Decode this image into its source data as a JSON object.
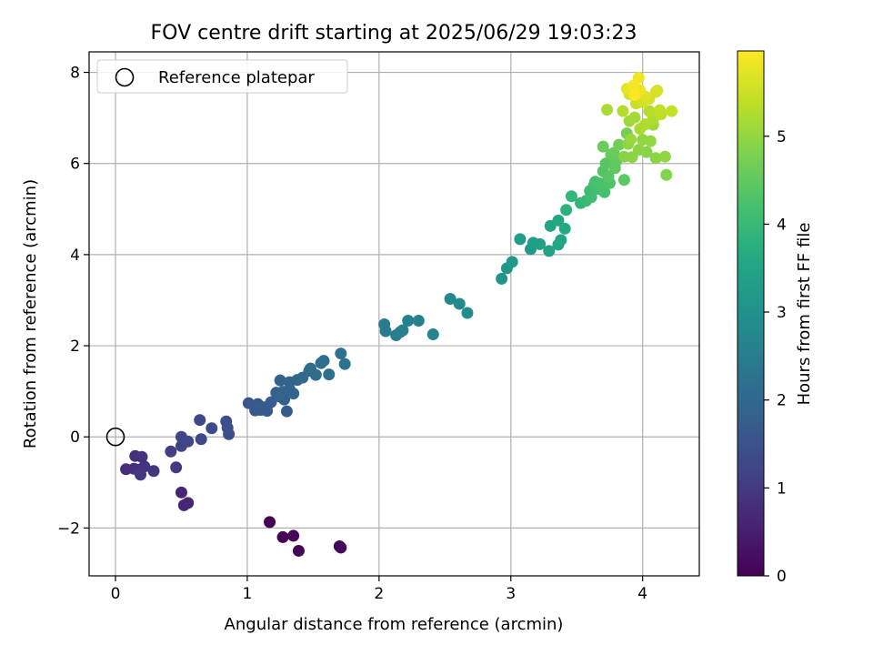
{
  "chart_data": {
    "type": "scatter",
    "title": "FOV centre drift starting at 2025/06/29 19:03:23",
    "xlabel": "Angular distance from reference (arcmin)",
    "ylabel": "Rotation from reference (arcmin)",
    "xlim": [
      -0.2,
      4.43
    ],
    "ylim": [
      -3.05,
      8.45
    ],
    "xticks": [
      0,
      1,
      2,
      3,
      4
    ],
    "yticks": [
      -2,
      0,
      2,
      4,
      6,
      8
    ],
    "grid": true,
    "legend": {
      "placement": "top-left",
      "entries": [
        "Reference platepar"
      ]
    },
    "reference_point": {
      "x": 0,
      "y": 0
    },
    "colorbar": {
      "label": "Hours from first FF file",
      "range": [
        0,
        5.97
      ],
      "ticks": [
        0,
        1,
        2,
        3,
        4,
        5
      ],
      "colormap": "viridis"
    },
    "series": [
      {
        "x": [
          1.17,
          1.27,
          1.35,
          1.39,
          1.7,
          1.71,
          0.08,
          0.14,
          0.18,
          0.15,
          0.2,
          0.22,
          0.29,
          0.19,
          0.5,
          0.52,
          0.55,
          0.46,
          0.42,
          0.5,
          0.5,
          0.55,
          0.64,
          0.65,
          0.73,
          0.84,
          0.86,
          0.85,
          1.01,
          1.08,
          1.12,
          1.15,
          1.06,
          1.1,
          1.18,
          1.22,
          1.25,
          1.28,
          1.3,
          1.32,
          1.27,
          1.35,
          1.38,
          1.42,
          1.47,
          1.48,
          1.52,
          1.56,
          1.58,
          1.62,
          1.71,
          1.74,
          1.25,
          1.32,
          2.04,
          2.05,
          2.13,
          2.16,
          2.18,
          2.22,
          2.3,
          2.41,
          2.54,
          2.61,
          2.67,
          2.93,
          2.97,
          3.01,
          3.07,
          3.15,
          3.17,
          3.22,
          3.3,
          3.29,
          3.36,
          3.38,
          3.36,
          3.41,
          3.42,
          3.46,
          3.53,
          3.57,
          3.6,
          3.61,
          3.63,
          3.64,
          3.66,
          3.68,
          3.7,
          3.72,
          3.74,
          3.76,
          3.7,
          3.78,
          3.8,
          3.82,
          3.86,
          3.88,
          3.75,
          3.71,
          3.79,
          3.86,
          3.89,
          3.9,
          3.92,
          3.94,
          3.96,
          3.98,
          4.0,
          4.02,
          3.9,
          3.95,
          4.05,
          4.08,
          4.1,
          4.11,
          4.13,
          4.17,
          4.18,
          3.73,
          3.85,
          3.92,
          3.97,
          4.0,
          4.05,
          4.1,
          4.14,
          4.22,
          3.88,
          3.93,
          3.98,
          4.02,
          4.08,
          3.94,
          3.91,
          3.97,
          4.03,
          4.06
        ],
        "y": [
          -1.87,
          -2.2,
          -2.17,
          -2.5,
          -2.4,
          -2.43,
          -0.71,
          -0.7,
          -0.72,
          -0.42,
          -0.44,
          -0.65,
          -0.75,
          -0.83,
          -1.22,
          -1.5,
          -1.45,
          -0.67,
          -0.32,
          -0.2,
          0.0,
          -0.1,
          0.37,
          -0.05,
          0.19,
          0.34,
          0.06,
          0.2,
          0.74,
          0.72,
          0.65,
          0.57,
          0.58,
          0.59,
          0.76,
          0.97,
          1.24,
          0.82,
          0.56,
          1.2,
          0.99,
          0.95,
          1.25,
          1.3,
          1.45,
          1.5,
          1.36,
          1.62,
          1.67,
          1.37,
          1.83,
          1.6,
          0.88,
          1.05,
          2.47,
          2.32,
          2.23,
          2.3,
          2.34,
          2.55,
          2.55,
          2.25,
          3.03,
          2.92,
          2.72,
          3.47,
          3.7,
          3.84,
          4.34,
          4.12,
          4.26,
          4.23,
          4.63,
          4.08,
          4.75,
          4.32,
          4.22,
          4.57,
          4.98,
          5.28,
          5.13,
          5.18,
          5.4,
          5.26,
          5.51,
          5.6,
          5.44,
          5.56,
          5.83,
          6.0,
          5.72,
          6.2,
          6.37,
          6.23,
          6.05,
          6.41,
          5.64,
          6.66,
          5.57,
          5.37,
          5.9,
          6.15,
          6.43,
          6.93,
          6.14,
          7.01,
          7.33,
          6.76,
          6.52,
          6.86,
          7.52,
          7.32,
          7.15,
          6.97,
          6.12,
          7.6,
          7.17,
          6.15,
          5.75,
          7.18,
          7.15,
          7.56,
          7.88,
          7.35,
          7.42,
          7.57,
          7.08,
          7.15,
          7.64,
          7.71,
          7.61,
          7.47,
          6.85,
          7.5,
          6.53,
          6.3,
          6.25,
          6.49
        ],
        "values": [
          0.02,
          0.05,
          0.07,
          0.08,
          0.1,
          0.12,
          0.75,
          0.78,
          0.82,
          0.8,
          0.85,
          0.88,
          0.92,
          0.95,
          0.6,
          0.62,
          0.64,
          1.02,
          1.1,
          1.15,
          1.2,
          1.24,
          1.28,
          1.3,
          1.35,
          1.4,
          1.42,
          1.45,
          1.58,
          1.62,
          1.65,
          1.68,
          1.64,
          1.7,
          1.75,
          1.8,
          1.85,
          1.78,
          1.72,
          1.9,
          1.88,
          1.92,
          1.97,
          2.0,
          2.05,
          2.07,
          2.1,
          2.14,
          2.16,
          2.18,
          2.22,
          2.25,
          1.86,
          1.9,
          2.45,
          2.48,
          2.5,
          2.52,
          2.55,
          2.58,
          2.62,
          2.68,
          2.8,
          2.84,
          2.88,
          3.1,
          3.14,
          3.18,
          3.3,
          3.25,
          3.34,
          3.38,
          3.5,
          3.45,
          3.55,
          3.48,
          3.52,
          3.6,
          3.8,
          3.92,
          3.88,
          4.0,
          4.05,
          4.1,
          4.15,
          4.2,
          4.18,
          4.25,
          4.35,
          4.42,
          4.4,
          4.55,
          4.6,
          4.58,
          4.5,
          4.68,
          4.45,
          4.72,
          4.3,
          4.2,
          4.48,
          4.9,
          4.95,
          5.1,
          4.92,
          5.15,
          5.35,
          5.2,
          5.0,
          5.25,
          5.6,
          5.45,
          5.3,
          5.25,
          4.95,
          5.55,
          5.4,
          4.98,
          4.85,
          5.2,
          5.3,
          5.5,
          5.85,
          5.55,
          5.6,
          5.62,
          5.38,
          5.42,
          5.75,
          5.9,
          5.8,
          5.7,
          5.1,
          5.95,
          5.05,
          4.95,
          4.9,
          5.0
        ]
      }
    ]
  }
}
